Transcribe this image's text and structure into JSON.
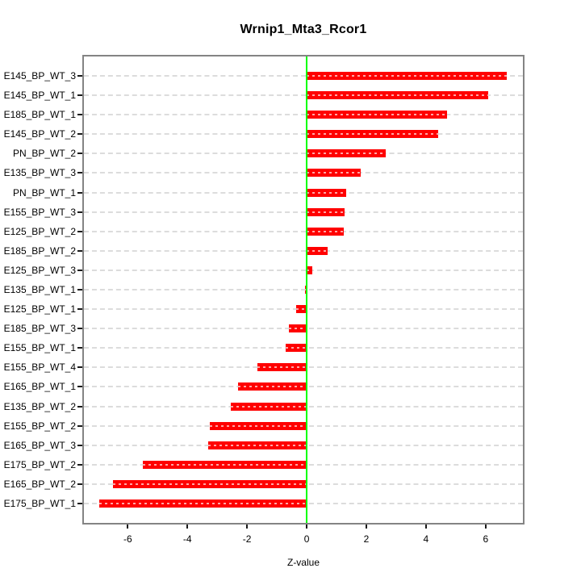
{
  "figure": {
    "background": "#ffffff"
  },
  "chart_data": {
    "type": "bar",
    "orientation": "horizontal",
    "title": "Wrnip1_Mta3_Rcor1",
    "xlabel": "Z-value",
    "ylabel": "",
    "legend": "none",
    "grid": "horizontal dashed line at each category row",
    "categories": [
      "E145_BP_WT_3",
      "E145_BP_WT_1",
      "E185_BP_WT_1",
      "E145_BP_WT_2",
      "PN_BP_WT_2",
      "E135_BP_WT_3",
      "PN_BP_WT_1",
      "E155_BP_WT_3",
      "E125_BP_WT_2",
      "E185_BP_WT_2",
      "E125_BP_WT_3",
      "E135_BP_WT_1",
      "E125_BP_WT_1",
      "E185_BP_WT_3",
      "E155_BP_WT_1",
      "E155_BP_WT_4",
      "E165_BP_WT_1",
      "E135_BP_WT_2",
      "E155_BP_WT_2",
      "E165_BP_WT_3",
      "E175_BP_WT_2",
      "E165_BP_WT_2",
      "E175_BP_WT_1"
    ],
    "values": [
      6.7,
      6.1,
      4.7,
      4.4,
      2.65,
      1.8,
      1.33,
      1.26,
      1.24,
      0.7,
      0.2,
      -0.05,
      -0.35,
      -0.6,
      -0.7,
      -1.65,
      -2.3,
      -2.55,
      -3.25,
      -3.3,
      -5.5,
      -6.5,
      -6.95
    ],
    "xlim": [
      -7.47,
      7.25
    ],
    "xticks": [
      -6,
      -4,
      -2,
      0,
      2,
      4,
      6
    ],
    "colors": {
      "bar_fill": "#ff0000",
      "bar_dash_overlay": "#ffffff",
      "zero_line": "#00ff00",
      "plot_border": "#848484",
      "gridline": "#dcdcdc",
      "axis_text": "#000000"
    }
  }
}
